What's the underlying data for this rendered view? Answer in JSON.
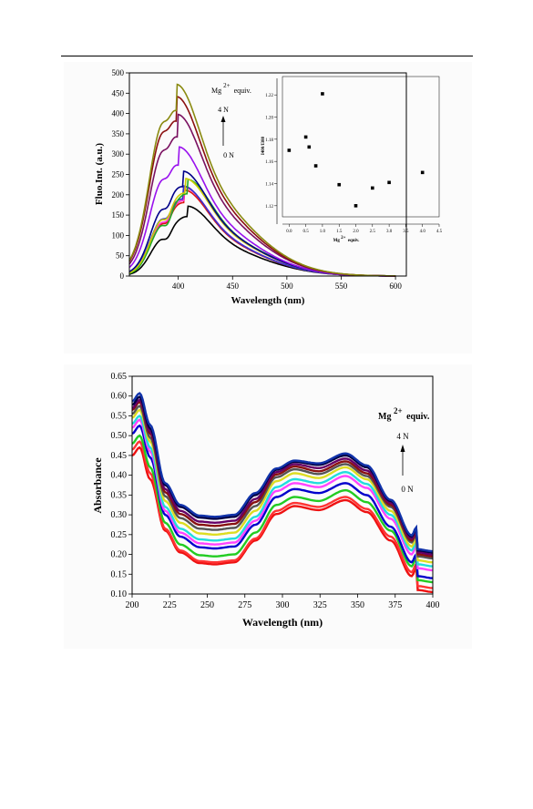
{
  "chart_data": [
    {
      "type": "line",
      "xlabel": "Wavelength (nm)",
      "ylabel": "Fluo.Int. (a.u.)",
      "xlim": [
        355,
        610
      ],
      "ylim": [
        0,
        500
      ],
      "x_ticks": [
        400,
        450,
        500,
        550,
        600
      ],
      "y_ticks": [
        0,
        50,
        100,
        150,
        200,
        250,
        300,
        350,
        400,
        450,
        500
      ],
      "annotation": {
        "ion": "Mg",
        "charge": "2+",
        "equiv_word": "equiv.",
        "top_label": "4 N",
        "bottom_label": "0 N"
      },
      "series": [
        {
          "color": "#000000",
          "peak": 172,
          "peak_x": 408,
          "shoulder": 0.87
        },
        {
          "color": "#dd1111",
          "peak": 212,
          "peak_x": 405,
          "shoulder": 0.88
        },
        {
          "color": "#ff33cc",
          "peak": 218,
          "peak_x": 405,
          "shoulder": 0.88
        },
        {
          "color": "#3333cc",
          "peak": 222,
          "peak_x": 404,
          "shoulder": 0.88
        },
        {
          "color": "#22aa22",
          "peak": 238,
          "peak_x": 408,
          "shoulder": 0.86
        },
        {
          "color": "#cccc00",
          "peak": 240,
          "peak_x": 406,
          "shoulder": 0.87
        },
        {
          "color": "#000088",
          "peak": 258,
          "peak_x": 404,
          "shoulder": 0.89
        },
        {
          "color": "#9911ee",
          "peak": 318,
          "peak_x": 400,
          "shoulder": 0.92
        },
        {
          "color": "#7a1060",
          "peak": 398,
          "peak_x": 399,
          "shoulder": 0.93
        },
        {
          "color": "#8b1010",
          "peak": 442,
          "peak_x": 398,
          "shoulder": 0.94
        },
        {
          "color": "#8a8a10",
          "peak": 472,
          "peak_x": 398,
          "shoulder": 0.94
        }
      ],
      "inset": {
        "type": "scatter",
        "ylabel": "I400/I380",
        "xlabel_base": "Mg",
        "xlabel_sup": "2+",
        "xlabel_suffix": "equiv.",
        "xlim": [
          -0.2,
          4.5
        ],
        "ylim": [
          1.11,
          1.23
        ],
        "x_ticks": [
          "0.0",
          "0.5",
          "1.0",
          "1.5",
          "2.0",
          "2.5",
          "3.0",
          "3.5",
          "4.0",
          "4.5"
        ],
        "y_ticks": [
          "1.12",
          "1.14",
          "1.16",
          "1.18",
          "1.20",
          "1.22"
        ],
        "points": [
          {
            "x": 0.0,
            "y": 1.17
          },
          {
            "x": 0.5,
            "y": 1.182
          },
          {
            "x": 0.6,
            "y": 1.173
          },
          {
            "x": 0.8,
            "y": 1.156
          },
          {
            "x": 1.0,
            "y": 1.221
          },
          {
            "x": 1.5,
            "y": 1.139
          },
          {
            "x": 2.0,
            "y": 1.12
          },
          {
            "x": 2.5,
            "y": 1.136
          },
          {
            "x": 3.0,
            "y": 1.141
          },
          {
            "x": 4.0,
            "y": 1.15
          }
        ]
      }
    },
    {
      "type": "line",
      "xlabel": "Wavelength (nm)",
      "ylabel": "Absorbance",
      "xlim": [
        200,
        400
      ],
      "ylim": [
        0.1,
        0.65
      ],
      "x_ticks": [
        200,
        225,
        250,
        275,
        300,
        325,
        350,
        375,
        400
      ],
      "y_ticks": [
        "0.10",
        "0.15",
        "0.20",
        "0.25",
        "0.30",
        "0.35",
        "0.40",
        "0.45",
        "0.50",
        "0.55",
        "0.60",
        "0.65"
      ],
      "annotation": {
        "ion": "Mg",
        "charge": "2+",
        "equiv_word": "equiv.",
        "top_label": "4 N",
        "bottom_label": "0 N"
      },
      "series": [
        {
          "color": "#ee1111",
          "peak205": 0.47,
          "min250": 0.175,
          "peak308": 0.322,
          "dip325": 0.312,
          "peak342": 0.337,
          "end400": 0.105
        },
        {
          "color": "#ff3333",
          "peak205": 0.485,
          "min250": 0.18,
          "peak308": 0.33,
          "dip325": 0.32,
          "peak342": 0.345,
          "end400": 0.115
        },
        {
          "color": "#22cc22",
          "peak205": 0.5,
          "min250": 0.195,
          "peak308": 0.345,
          "dip325": 0.335,
          "peak342": 0.362,
          "end400": 0.13
        },
        {
          "color": "#0000cc",
          "peak205": 0.525,
          "min250": 0.215,
          "peak308": 0.365,
          "dip325": 0.355,
          "peak342": 0.38,
          "end400": 0.14
        },
        {
          "color": "#ff44ff",
          "peak205": 0.54,
          "min250": 0.225,
          "peak308": 0.38,
          "dip325": 0.37,
          "peak342": 0.398,
          "end400": 0.16
        },
        {
          "color": "#22dddd",
          "peak205": 0.55,
          "min250": 0.235,
          "peak308": 0.39,
          "dip325": 0.38,
          "peak342": 0.408,
          "end400": 0.17
        },
        {
          "color": "#dddd22",
          "peak205": 0.565,
          "min250": 0.25,
          "peak308": 0.405,
          "dip325": 0.393,
          "peak342": 0.42,
          "end400": 0.18
        },
        {
          "color": "#555555",
          "peak205": 0.575,
          "min250": 0.262,
          "peak308": 0.415,
          "dip325": 0.403,
          "peak342": 0.428,
          "end400": 0.19
        },
        {
          "color": "#881111",
          "peak205": 0.585,
          "min250": 0.272,
          "peak308": 0.422,
          "dip325": 0.41,
          "peak342": 0.435,
          "end400": 0.195
        },
        {
          "color": "#660066",
          "peak205": 0.59,
          "min250": 0.28,
          "peak308": 0.428,
          "dip325": 0.418,
          "peak342": 0.442,
          "end400": 0.2
        },
        {
          "color": "#000044",
          "peak205": 0.598,
          "min250": 0.29,
          "peak308": 0.434,
          "dip325": 0.426,
          "peak342": 0.45,
          "end400": 0.205
        },
        {
          "color": "#1133aa",
          "peak205": 0.607,
          "min250": 0.295,
          "peak308": 0.437,
          "dip325": 0.43,
          "peak342": 0.455,
          "end400": 0.208
        }
      ]
    }
  ]
}
